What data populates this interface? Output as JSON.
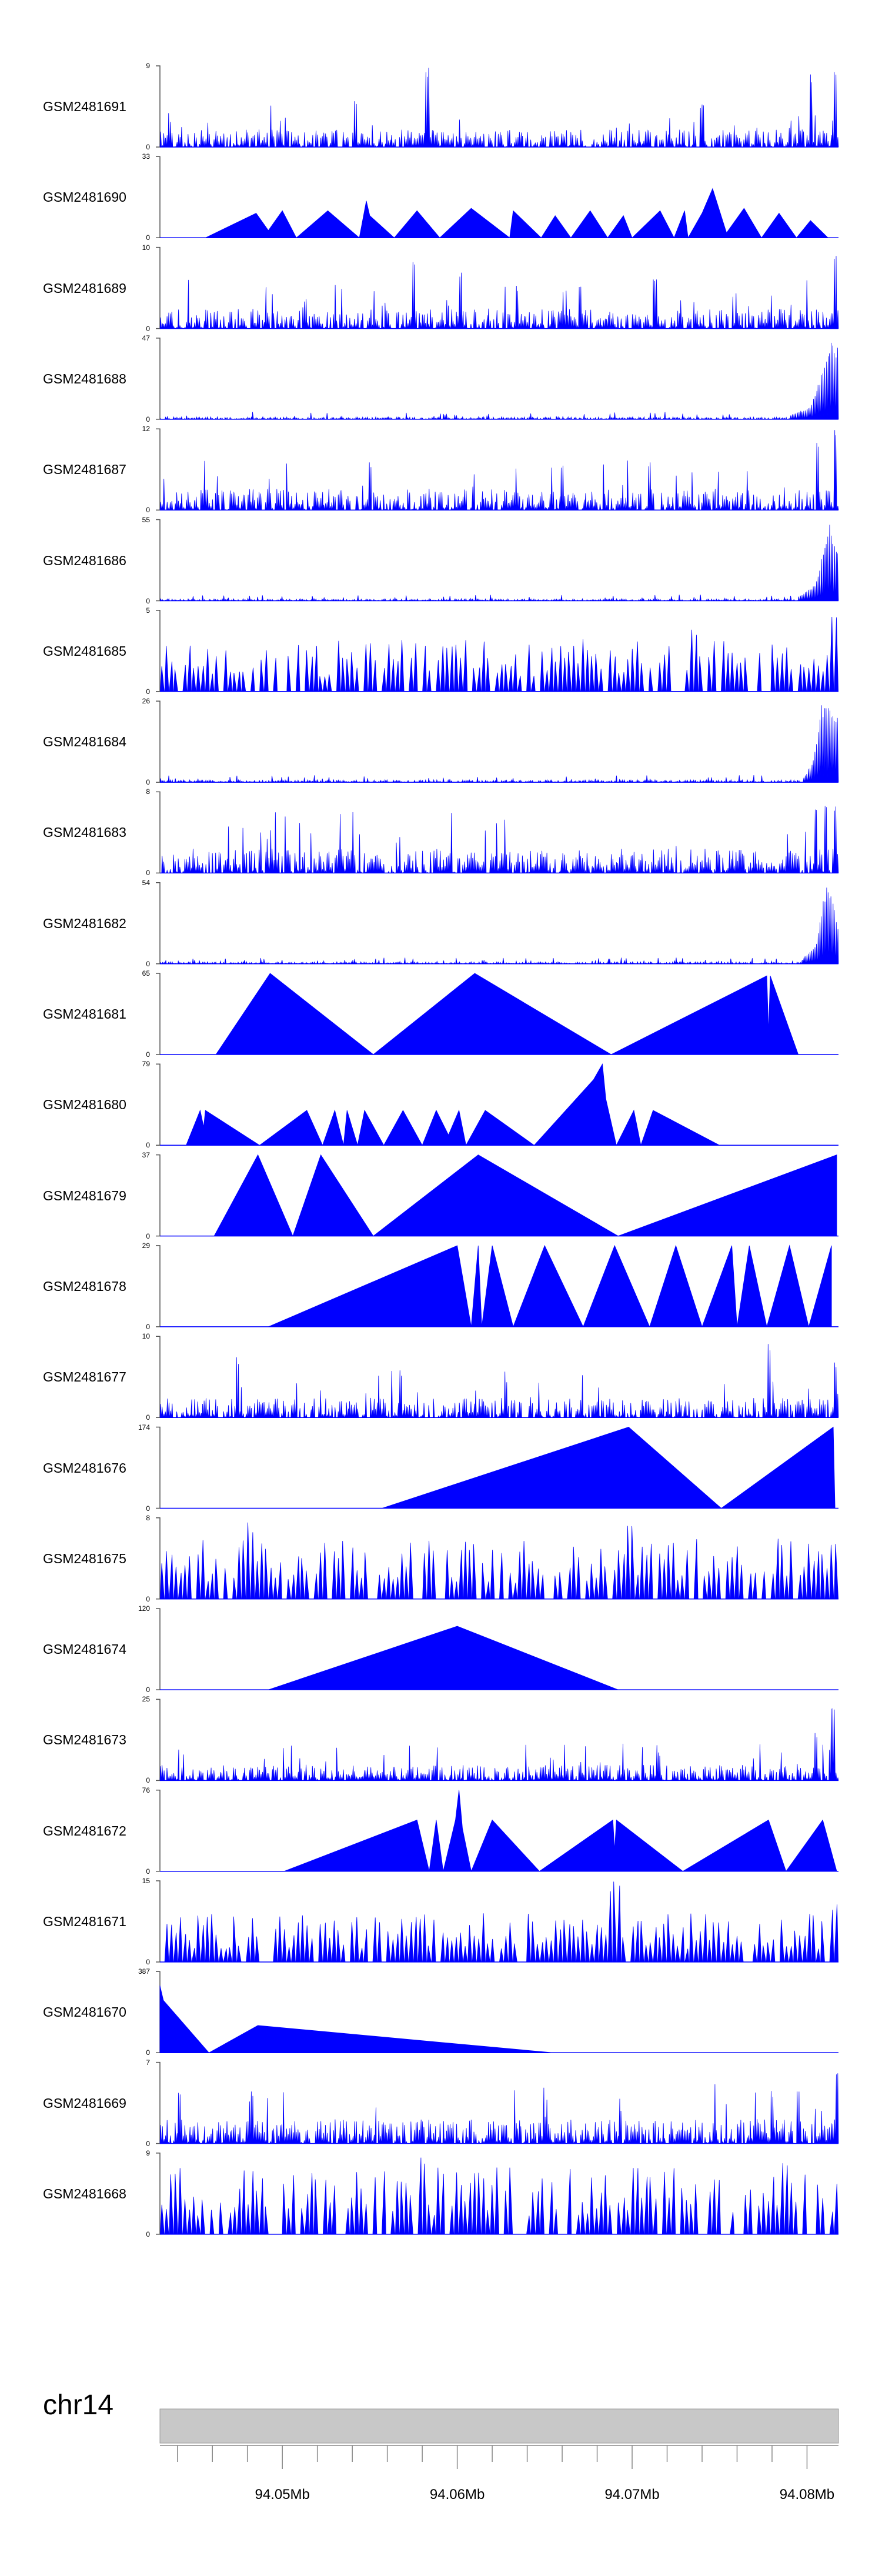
{
  "chart_data": {
    "type": "area",
    "title": "",
    "chromosome": "chr14",
    "x_range": [
      94043000,
      94081800
    ],
    "x_ticks": [
      {
        "value": 94050000,
        "label": "94.05Mb"
      },
      {
        "value": 94060000,
        "label": "94.06Mb"
      },
      {
        "value": 94070000,
        "label": "94.07Mb"
      },
      {
        "value": 94080000,
        "label": "94.08Mb"
      }
    ],
    "fill_color": "#0000ff",
    "ideogram_color": "#c8c8c8",
    "series": [
      {
        "name": "GSM2481691",
        "ymax": "9",
        "ymin": "0",
        "max": 9,
        "profile": "dense",
        "seed": 11,
        "level": 0.18,
        "peaks": [
          [
            94054200,
            0.6
          ],
          [
            94058300,
            1.0
          ],
          [
            94074000,
            0.55
          ],
          [
            94080200,
            0.9
          ],
          [
            94081600,
            1.0
          ]
        ]
      },
      {
        "name": "GSM2481690",
        "ymax": "33",
        "ymin": "0",
        "max": 33,
        "points": [
          [
            94045600,
            0
          ],
          [
            94048500,
            10
          ],
          [
            94049200,
            3
          ],
          [
            94050000,
            11
          ],
          [
            94050800,
            0
          ],
          [
            94052600,
            11
          ],
          [
            94054400,
            0
          ],
          [
            94054800,
            15
          ],
          [
            94055000,
            9
          ],
          [
            94056400,
            0
          ],
          [
            94057700,
            11
          ],
          [
            94059000,
            0
          ],
          [
            94060800,
            12
          ],
          [
            94063000,
            0
          ],
          [
            94063200,
            11
          ],
          [
            94064800,
            0
          ],
          [
            94065600,
            9
          ],
          [
            94066500,
            0
          ],
          [
            94067600,
            11
          ],
          [
            94068600,
            0
          ],
          [
            94069500,
            9
          ],
          [
            94070000,
            0
          ],
          [
            94071600,
            11
          ],
          [
            94072400,
            0
          ],
          [
            94073000,
            11
          ],
          [
            94073200,
            0
          ],
          [
            94074000,
            10
          ],
          [
            94074600,
            20
          ],
          [
            94075400,
            2
          ],
          [
            94076400,
            12
          ],
          [
            94077400,
            0
          ],
          [
            94078400,
            10
          ],
          [
            94079400,
            0
          ],
          [
            94080200,
            7
          ],
          [
            94081200,
            0
          ]
        ]
      },
      {
        "name": "GSM2481689",
        "ymax": "10",
        "ymin": "0",
        "max": 10,
        "profile": "dense",
        "seed": 23,
        "level": 0.2,
        "peaks": [
          [
            94057500,
            0.9
          ],
          [
            94060200,
            0.7
          ],
          [
            94067000,
            0.6
          ],
          [
            94071300,
            0.65
          ],
          [
            94081600,
            1.0
          ]
        ]
      },
      {
        "name": "GSM2481688",
        "ymax": "47",
        "ymin": "0",
        "max": 47,
        "profile": "sparse",
        "seed": 31,
        "level": 0.03,
        "ramp": [
          [
            94079000,
            0.05
          ],
          [
            94080200,
            0.15
          ],
          [
            94080900,
            0.6
          ],
          [
            94081400,
            1.0
          ],
          [
            94081800,
            0.9
          ]
        ]
      },
      {
        "name": "GSM2481687",
        "ymax": "12",
        "ymin": "0",
        "max": 12,
        "profile": "dense",
        "seed": 37,
        "level": 0.22,
        "peaks": [
          [
            94055000,
            0.6
          ],
          [
            94066000,
            0.55
          ],
          [
            94071000,
            0.6
          ],
          [
            94080600,
            0.85
          ],
          [
            94081600,
            1.0
          ]
        ]
      },
      {
        "name": "GSM2481686",
        "ymax": "55",
        "ymin": "0",
        "max": 55,
        "profile": "sparse",
        "seed": 41,
        "level": 0.025,
        "ramp": [
          [
            94079500,
            0.05
          ],
          [
            94080500,
            0.2
          ],
          [
            94081000,
            0.7
          ],
          [
            94081300,
            1.0
          ],
          [
            94081800,
            0.6
          ]
        ]
      },
      {
        "name": "GSM2481685",
        "ymax": "5",
        "ymin": "0",
        "max": 5,
        "profile": "spiky",
        "seed": 43,
        "level": 0.45,
        "peaks": [
          [
            94081500,
            1.0
          ],
          [
            94073500,
            0.8
          ]
        ]
      },
      {
        "name": "GSM2481684",
        "ymax": "26",
        "ymin": "0",
        "max": 26,
        "profile": "sparse",
        "seed": 47,
        "level": 0.03,
        "ramp": [
          [
            94079800,
            0.05
          ],
          [
            94080400,
            0.3
          ],
          [
            94080800,
            0.95
          ],
          [
            94081300,
            1.0
          ],
          [
            94081800,
            0.8
          ]
        ]
      },
      {
        "name": "GSM2481683",
        "ymax": "8",
        "ymin": "0",
        "max": 8,
        "profile": "dense",
        "seed": 53,
        "level": 0.25,
        "peaks": [
          [
            94080500,
            0.85
          ],
          [
            94081100,
            0.95
          ],
          [
            94081600,
            0.9
          ]
        ]
      },
      {
        "name": "GSM2481682",
        "ymax": "54",
        "ymin": "0",
        "max": 54,
        "profile": "sparse",
        "seed": 59,
        "level": 0.025,
        "ramp": [
          [
            94079700,
            0.05
          ],
          [
            94080500,
            0.25
          ],
          [
            94080900,
            0.8
          ],
          [
            94081200,
            1.0
          ],
          [
            94081800,
            0.5
          ]
        ]
      },
      {
        "name": "GSM2481681",
        "ymax": "65",
        "ymin": "0",
        "max": 65,
        "points": [
          [
            94046200,
            0
          ],
          [
            94049300,
            65
          ],
          [
            94055200,
            0
          ],
          [
            94061000,
            65
          ],
          [
            94068800,
            0
          ],
          [
            94077700,
            63
          ],
          [
            94077800,
            18
          ],
          [
            94077900,
            63
          ],
          [
            94079500,
            0
          ]
        ]
      },
      {
        "name": "GSM2481680",
        "ymax": "79",
        "ymin": "0",
        "max": 79,
        "points": [
          [
            94044500,
            0
          ],
          [
            94045300,
            34
          ],
          [
            94045500,
            18
          ],
          [
            94045600,
            34
          ],
          [
            94048700,
            0
          ],
          [
            94051400,
            34
          ],
          [
            94052300,
            0
          ],
          [
            94053000,
            34
          ],
          [
            94053500,
            0
          ],
          [
            94053700,
            34
          ],
          [
            94054300,
            0
          ],
          [
            94054700,
            34
          ],
          [
            94055800,
            0
          ],
          [
            94056900,
            34
          ],
          [
            94058000,
            0
          ],
          [
            94058800,
            34
          ],
          [
            94059500,
            10
          ],
          [
            94060100,
            34
          ],
          [
            94060500,
            0
          ],
          [
            94061600,
            34
          ],
          [
            94064400,
            0
          ],
          [
            94067800,
            64
          ],
          [
            94068300,
            79
          ],
          [
            94068500,
            45
          ],
          [
            94069100,
            0
          ],
          [
            94070100,
            34
          ],
          [
            94070500,
            0
          ],
          [
            94071200,
            34
          ],
          [
            94075000,
            0
          ]
        ]
      },
      {
        "name": "GSM2481679",
        "ymax": "37",
        "ymin": "0",
        "max": 37,
        "points": [
          [
            94046100,
            0
          ],
          [
            94048600,
            37
          ],
          [
            94050600,
            0
          ],
          [
            94052200,
            37
          ],
          [
            94055200,
            0
          ],
          [
            94061200,
            37
          ],
          [
            94069200,
            0
          ],
          [
            94081700,
            37
          ],
          [
            94081700,
            0
          ]
        ]
      },
      {
        "name": "GSM2481678",
        "ymax": "29",
        "ymin": "0",
        "max": 29,
        "points": [
          [
            94049200,
            0
          ],
          [
            94060000,
            29
          ],
          [
            94060800,
            0
          ],
          [
            94061200,
            29
          ],
          [
            94061400,
            0
          ],
          [
            94062000,
            29
          ],
          [
            94063200,
            0
          ],
          [
            94065000,
            29
          ],
          [
            94067200,
            0
          ],
          [
            94069000,
            29
          ],
          [
            94071000,
            0
          ],
          [
            94072500,
            29
          ],
          [
            94074000,
            0
          ],
          [
            94075700,
            29
          ],
          [
            94076000,
            0
          ],
          [
            94076700,
            29
          ],
          [
            94077700,
            0
          ],
          [
            94079000,
            29
          ],
          [
            94080100,
            0
          ],
          [
            94081400,
            29
          ],
          [
            94081400,
            0
          ]
        ]
      },
      {
        "name": "GSM2481677",
        "ymax": "10",
        "ymin": "0",
        "max": 10,
        "profile": "dense",
        "seed": 67,
        "level": 0.2,
        "peaks": [
          [
            94047400,
            0.75
          ],
          [
            94056800,
            0.6
          ],
          [
            94077800,
            0.95
          ],
          [
            94081600,
            0.7
          ]
        ]
      },
      {
        "name": "GSM2481676",
        "ymax": "174",
        "ymin": "0",
        "max": 174,
        "points": [
          [
            94055700,
            0
          ],
          [
            94069800,
            174
          ],
          [
            94075100,
            0
          ],
          [
            94081500,
            174
          ],
          [
            94081600,
            0
          ]
        ]
      },
      {
        "name": "GSM2481675",
        "ymax": "8",
        "ymin": "0",
        "max": 8,
        "profile": "spiky",
        "seed": 71,
        "level": 0.5,
        "peaks": [
          [
            94048200,
            0.95
          ],
          [
            94070000,
            0.95
          ]
        ]
      },
      {
        "name": "GSM2481674",
        "ymax": "120",
        "ymin": "0",
        "max": 120,
        "points": [
          [
            94049200,
            0
          ],
          [
            94060000,
            94
          ],
          [
            94069200,
            0
          ]
        ]
      },
      {
        "name": "GSM2481673",
        "ymax": "25",
        "ymin": "0",
        "max": 25,
        "profile": "dense",
        "seed": 79,
        "level": 0.16,
        "peaks": [
          [
            94071500,
            0.35
          ],
          [
            94080500,
            0.6
          ],
          [
            94081500,
            0.95
          ]
        ]
      },
      {
        "name": "GSM2481672",
        "ymax": "76",
        "ymin": "0",
        "max": 76,
        "points": [
          [
            94050100,
            0
          ],
          [
            94057700,
            48
          ],
          [
            94058400,
            0
          ],
          [
            94058800,
            48
          ],
          [
            94059200,
            0
          ],
          [
            94059900,
            48
          ],
          [
            94060100,
            76
          ],
          [
            94060300,
            40
          ],
          [
            94060800,
            0
          ],
          [
            94062000,
            48
          ],
          [
            94064700,
            0
          ],
          [
            94068900,
            48
          ],
          [
            94069000,
            20
          ],
          [
            94069100,
            48
          ],
          [
            94072900,
            0
          ],
          [
            94077800,
            48
          ],
          [
            94078800,
            0
          ],
          [
            94080900,
            48
          ],
          [
            94081700,
            0
          ]
        ]
      },
      {
        "name": "GSM2481671",
        "ymax": "15",
        "ymin": "0",
        "max": 15,
        "profile": "spiky",
        "seed": 83,
        "level": 0.4,
        "peaks": [
          [
            94069000,
            1.0
          ],
          [
            94081600,
            0.75
          ]
        ]
      },
      {
        "name": "GSM2481670",
        "ymax": "387",
        "ymin": "0",
        "max": 387,
        "points": [
          [
            94043000,
            0
          ],
          [
            94043000,
            320
          ],
          [
            94043200,
            250
          ],
          [
            94045800,
            0
          ],
          [
            94048600,
            130
          ],
          [
            94065500,
            0
          ]
        ]
      },
      {
        "name": "GSM2481669",
        "ymax": "7",
        "ymin": "0",
        "max": 7,
        "profile": "dense",
        "seed": 89,
        "level": 0.25,
        "peaks": [
          [
            94048200,
            0.55
          ],
          [
            94078000,
            0.65
          ],
          [
            94079500,
            0.75
          ],
          [
            94081700,
            1.0
          ]
        ]
      },
      {
        "name": "GSM2481668",
        "ymax": "9",
        "ymin": "0",
        "max": 9,
        "profile": "spiky",
        "seed": 97,
        "level": 0.55,
        "peaks": [
          [
            94044100,
            0.85
          ],
          [
            94058000,
            0.95
          ],
          [
            94078700,
            0.9
          ]
        ]
      }
    ]
  }
}
